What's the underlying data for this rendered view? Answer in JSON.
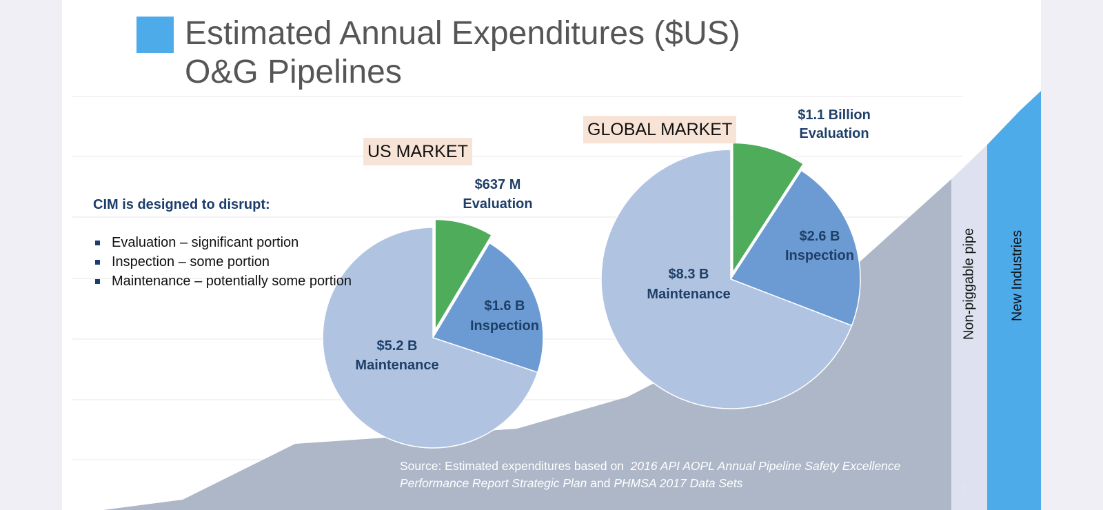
{
  "title": {
    "line1": "Estimated Annual Expenditures ($US)",
    "line2": "O&G Pipelines"
  },
  "left_panel": {
    "lead": "CIM is designed to disrupt:",
    "bullets": [
      "Evaluation – significant portion",
      "Inspection – some portion",
      "Maintenance – potentially some portion"
    ]
  },
  "source": {
    "prefix": "Source: Estimated expenditures based on",
    "doc1": "2016 API AOPL Annual Pipeline Safety Excellence Performance Report Strategic Plan",
    "joiner": "and",
    "doc2": "PHMSA 2017 Data Sets"
  },
  "side_bands": {
    "band1": "Non-piggable pipe",
    "band2": "New Industries"
  },
  "page_number": "7",
  "colors": {
    "evaluation": "#4eac5b",
    "inspection": "#6b9bd2",
    "maintenance": "#b0c4e2",
    "label_text": "#1f3f68",
    "area": "#adb7c8",
    "accent_blue": "#4dabea",
    "band_light": "#dee2f0"
  },
  "chart_data": [
    {
      "type": "pie",
      "title": "US MARKET",
      "unit": "$US",
      "slices": [
        {
          "name": "Evaluation",
          "value": 0.637,
          "label": [
            "$637 M",
            "Evaluation"
          ],
          "exploded": true
        },
        {
          "name": "Inspection",
          "value": 1.6,
          "label": [
            "$1.6 B",
            "Inspection"
          ]
        },
        {
          "name": "Maintenance",
          "value": 5.2,
          "label": [
            "$5.2 B",
            "Maintenance"
          ]
        }
      ]
    },
    {
      "type": "pie",
      "title": "GLOBAL MARKET",
      "unit": "$US",
      "slices": [
        {
          "name": "Evaluation",
          "value": 1.1,
          "label": [
            "$1.1 Billion",
            "Evaluation"
          ],
          "exploded": true
        },
        {
          "name": "Inspection",
          "value": 2.6,
          "label": [
            "$2.6 B",
            "Inspection"
          ]
        },
        {
          "name": "Maintenance",
          "value": 8.3,
          "label": [
            "$8.3 B",
            "Maintenance"
          ]
        }
      ]
    }
  ]
}
